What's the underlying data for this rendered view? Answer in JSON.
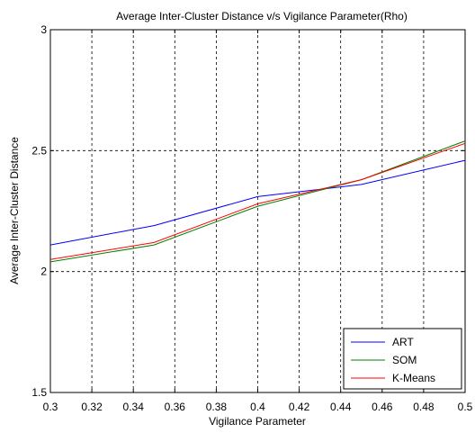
{
  "chart_data": {
    "type": "line",
    "title": "Average Inter-Cluster Distance v/s Vigilance Parameter(Rho)",
    "xlabel": "Vigilance Parameter",
    "ylabel": "Average Inter-Cluster Distance",
    "xlim": [
      0.3,
      0.5
    ],
    "ylim": [
      1.5,
      3
    ],
    "xticks": [
      "0.3",
      "0.32",
      "0.34",
      "0.36",
      "0.38",
      "0.4",
      "0.42",
      "0.44",
      "0.46",
      "0.48",
      "0.5"
    ],
    "yticks": [
      "1.5",
      "2",
      "2.5",
      "3"
    ],
    "grid": true,
    "legend_position": "bottom-right",
    "x": [
      0.3,
      0.35,
      0.4,
      0.45,
      0.5
    ],
    "series": [
      {
        "name": "ART",
        "color": "#0000ff",
        "values": [
          2.11,
          2.19,
          2.31,
          2.36,
          2.46
        ]
      },
      {
        "name": "SOM",
        "color": "#008000",
        "values": [
          2.04,
          2.11,
          2.27,
          2.38,
          2.54
        ]
      },
      {
        "name": "K-Means",
        "color": "#ff0000",
        "values": [
          2.05,
          2.12,
          2.28,
          2.38,
          2.53
        ]
      }
    ]
  }
}
